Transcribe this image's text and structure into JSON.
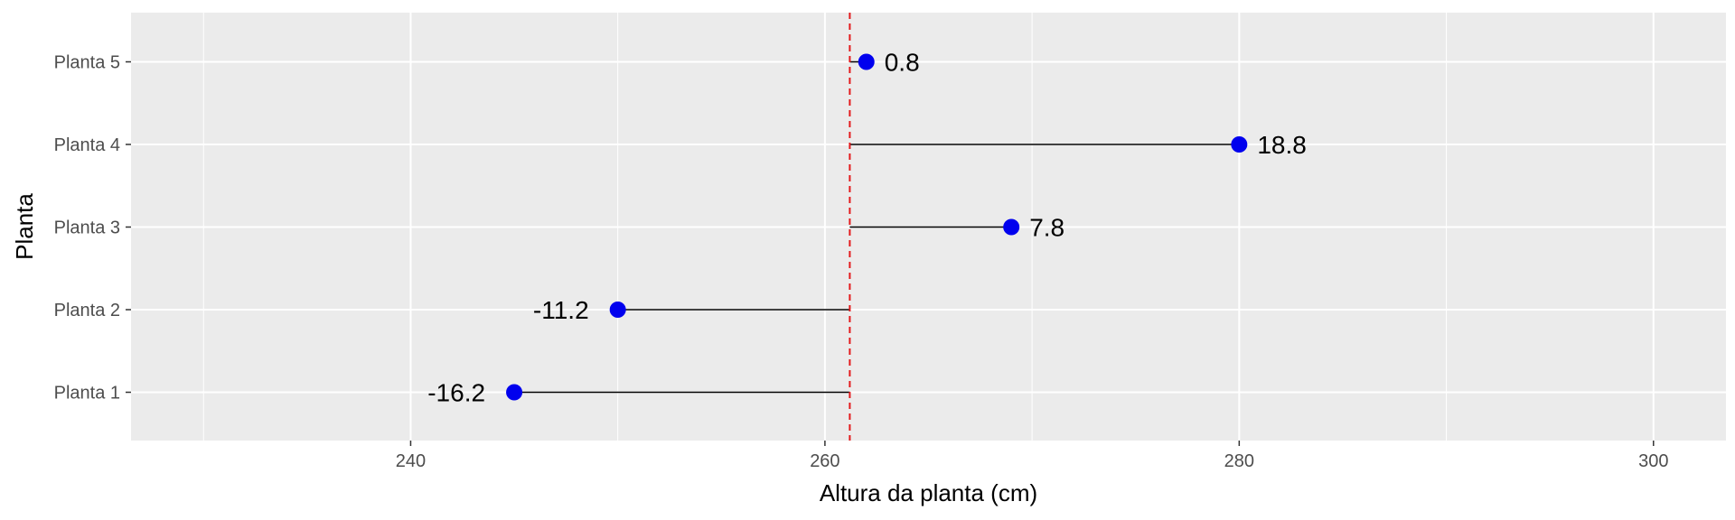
{
  "chart_data": {
    "type": "dot",
    "xlabel": "Altura da planta (cm)",
    "ylabel": "Planta",
    "xlim": [
      226.5,
      303.5
    ],
    "x_ticks": [
      240,
      260,
      280,
      300
    ],
    "x_tick_labels": [
      "240",
      "260",
      "280",
      "300"
    ],
    "reference_line": {
      "value": 261.2,
      "style": "dashed",
      "color": "#e31a1c"
    },
    "categories": [
      "Planta 1",
      "Planta 2",
      "Planta 3",
      "Planta 4",
      "Planta 5"
    ],
    "values": [
      245,
      250,
      269,
      280,
      262
    ],
    "deviations": [
      -16.2,
      -11.2,
      7.8,
      18.8,
      0.8
    ],
    "deviation_labels": [
      "-16.2",
      "-11.2",
      "7.8",
      "18.8",
      "0.8"
    ],
    "point_color": "#0000ee",
    "segment_color": "#000000",
    "panel_background": "#ebebeb",
    "grid_color": "#ffffff",
    "grid": true,
    "legend": "none"
  }
}
